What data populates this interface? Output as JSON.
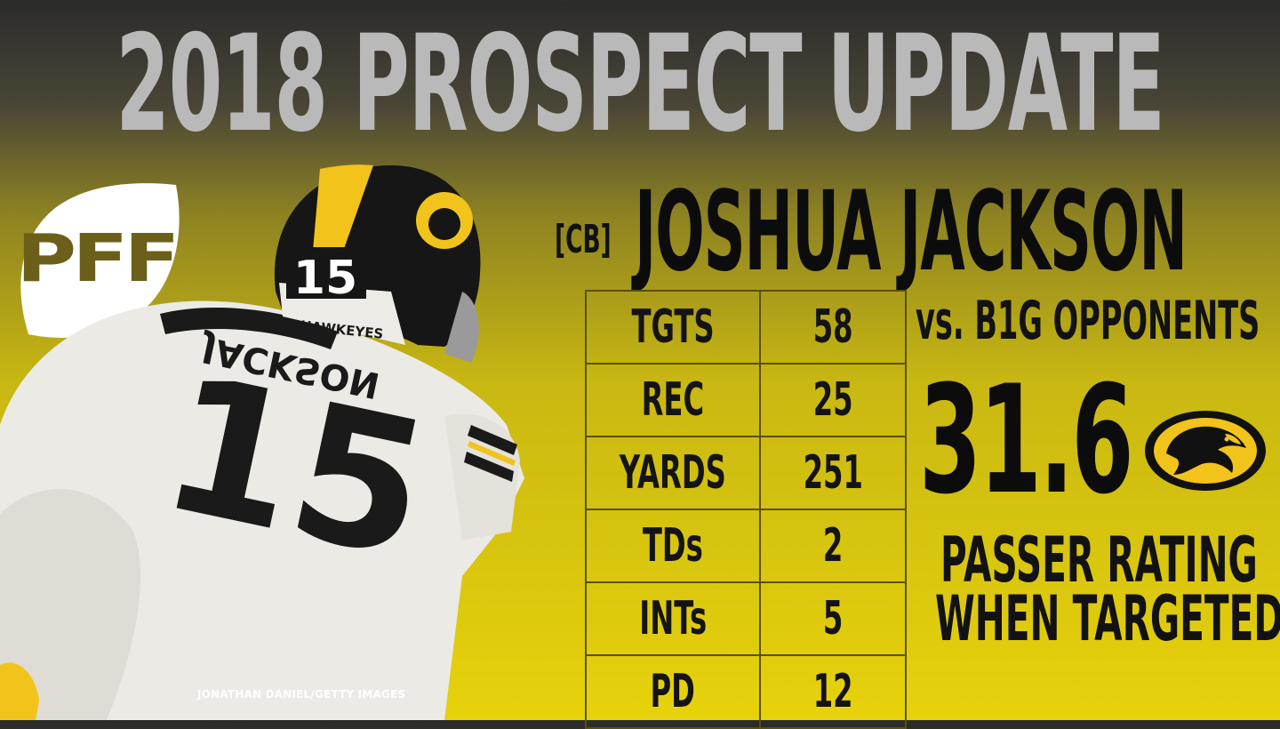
{
  "header": {
    "title": "2018 PROSPECT UPDATE"
  },
  "brand": {
    "logo_text": "PFF"
  },
  "player": {
    "position_tag": "[CB]",
    "name": "JOSHUA JACKSON",
    "jersey_number": "15",
    "jersey_name": "JACKSON",
    "helmet_text": "HAWKEYES",
    "photo_credit": "JONATHAN DANIEL/GETTY IMAGES"
  },
  "stats": {
    "context": "vs. B1G OPPONENTS",
    "rows": [
      {
        "label": "TGTS",
        "value": "58"
      },
      {
        "label": "REC",
        "value": "25"
      },
      {
        "label": "YARDS",
        "value": "251"
      },
      {
        "label": "TDs",
        "value": "2"
      },
      {
        "label": "INTs",
        "value": "5"
      },
      {
        "label": "PD",
        "value": "12"
      }
    ]
  },
  "rating": {
    "value": "31.6",
    "caption_line1": "PASSER RATING",
    "caption_line2": "WHEN TARGETED"
  },
  "colors": {
    "background_top": "#2b2b2b",
    "background_bottom": "#e7d20b",
    "title_text": "#b9b9b9",
    "text_dark": "#111111",
    "table_border": "#5a4f0c",
    "hawkeyes_gold": "#f2c31a"
  },
  "icons": {
    "pff_logo": "pff-football-logo",
    "team_logo": "tigerhawk-icon"
  }
}
